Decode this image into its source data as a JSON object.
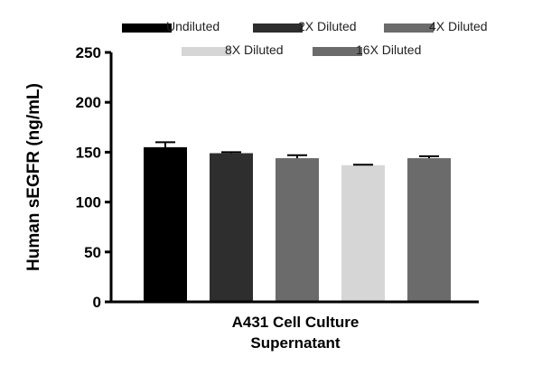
{
  "chart_data": {
    "type": "bar",
    "categories": [
      "A431 Cell Culture Supernatant"
    ],
    "category_label_lines": [
      "A431 Cell Culture",
      "Supernatant"
    ],
    "ylabel": "Human sEGFR (ng/mL)",
    "xlabel": "",
    "ylim": [
      0,
      250
    ],
    "yticks": [
      0,
      50,
      100,
      150,
      200,
      250
    ],
    "grid": false,
    "legend_position": "top",
    "series": [
      {
        "name": "Undiluted",
        "values": [
          155
        ],
        "error": [
          5
        ],
        "color": "#000000"
      },
      {
        "name": "2X Diluted",
        "values": [
          149
        ],
        "error": [
          1
        ],
        "color": "#2e2e2e"
      },
      {
        "name": "4X Diluted",
        "values": [
          144
        ],
        "error": [
          3
        ],
        "color": "#6b6b6b"
      },
      {
        "name": "8X Diluted",
        "values": [
          137
        ],
        "error": [
          0.5
        ],
        "color": "#d6d6d6"
      },
      {
        "name": "16X Diluted",
        "values": [
          144
        ],
        "error": [
          2
        ],
        "color": "#6b6b6b"
      }
    ]
  }
}
